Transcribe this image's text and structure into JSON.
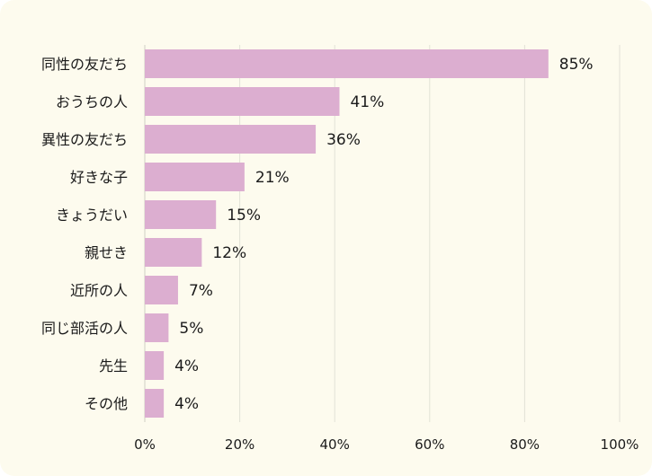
{
  "chart_data": {
    "type": "bar",
    "orientation": "horizontal",
    "title": "",
    "xlabel": "",
    "ylabel": "",
    "categories": [
      "同性の友だち",
      "おうちの人",
      "異性の友だち",
      "好きな子",
      "きょうだい",
      "親せき",
      "近所の人",
      "同じ部活の人",
      "先生",
      "その他"
    ],
    "values": [
      85,
      41,
      36,
      21,
      15,
      12,
      7,
      5,
      4,
      4
    ],
    "value_labels": [
      "85%",
      "41%",
      "36%",
      "21%",
      "15%",
      "12%",
      "7%",
      "5%",
      "4%",
      "4%"
    ],
    "xlim": [
      0,
      100
    ],
    "x_ticks": [
      0,
      20,
      40,
      60,
      80,
      100
    ],
    "x_tick_labels": [
      "0%",
      "20%",
      "40%",
      "60%",
      "80%",
      "100%"
    ],
    "grid": true,
    "legend": "none",
    "bar_color": "#dcaed0",
    "background_color": "#fdfbee",
    "grid_color": "#e2e2d6"
  }
}
